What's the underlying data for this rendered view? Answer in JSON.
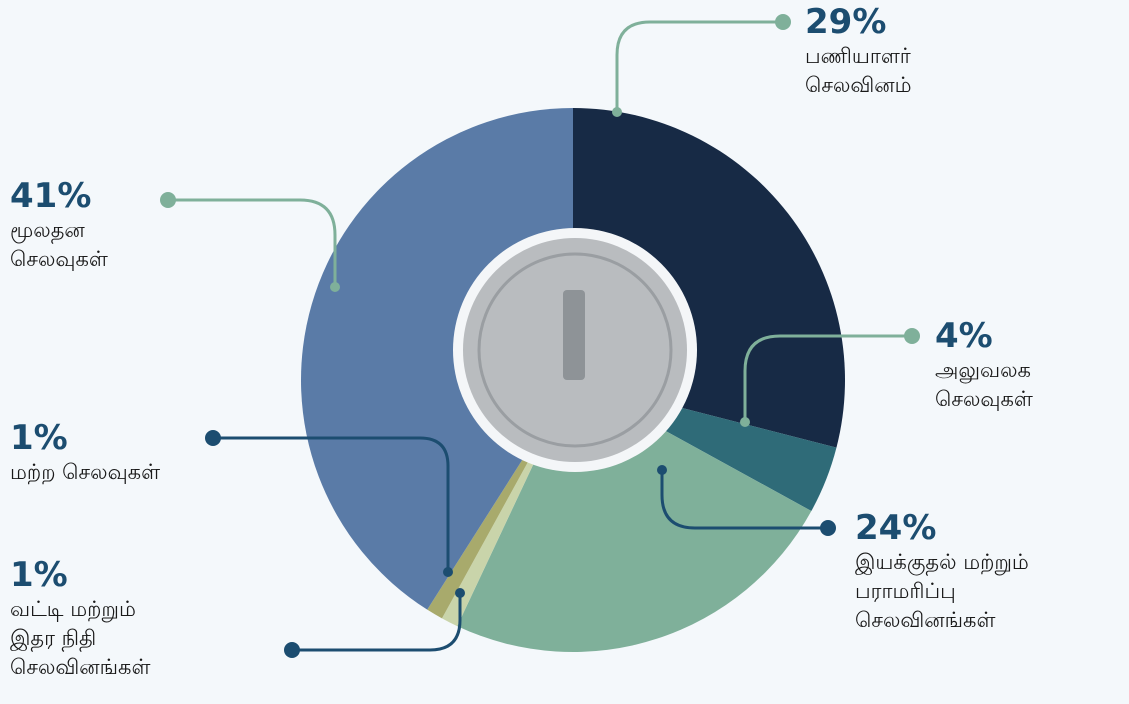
{
  "chart_data": {
    "type": "pie",
    "categories": [
      "பணியாளர்\nசெலவினம்",
      "அலுவலக\nசெலவுகள்",
      "இயக்குதல் மற்றும்\nபராமரிப்பு\nசெலவினங்கள்",
      "வட்டி மற்றும்\nஇதர நிதி\nசெலவினங்கள்",
      "மற்ற செலவுகள்",
      "மூலதன\nசெலவுகள்"
    ],
    "values": [
      29,
      4,
      24,
      1,
      1,
      41
    ],
    "value_labels": [
      "29%",
      "4%",
      "24%",
      "1%",
      "1%",
      "41%"
    ],
    "colors": [
      "#172a45",
      "#2f6b78",
      "#7fb09a",
      "#c9d4aa",
      "#a8aa6c",
      "#5a7ba7"
    ]
  }
}
